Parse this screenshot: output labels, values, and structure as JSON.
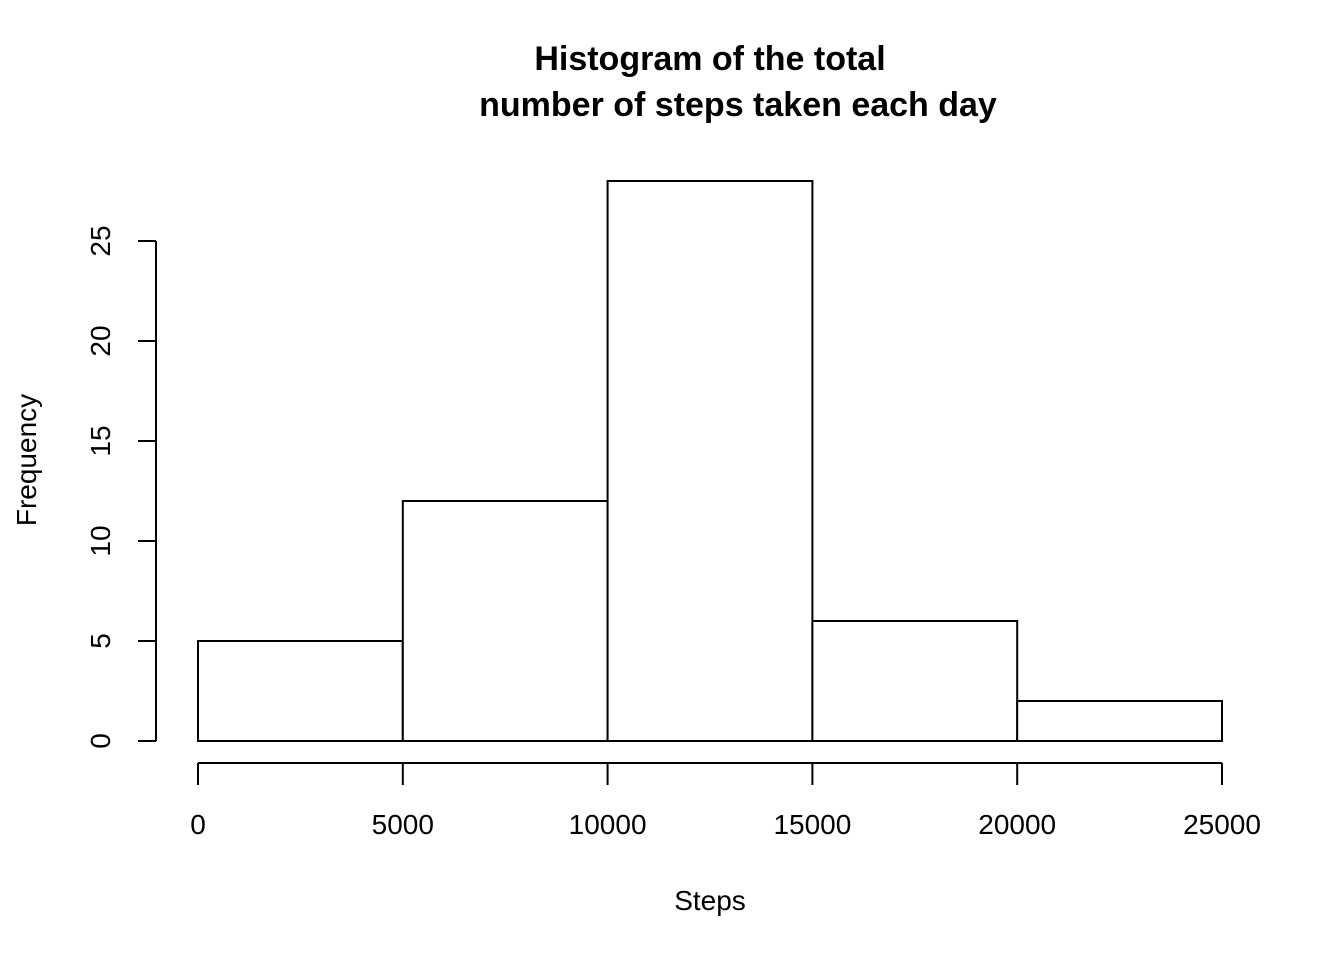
{
  "chart_data": {
    "type": "bar",
    "title_lines": [
      "Histogram of the total",
      "number of steps taken each day"
    ],
    "xlabel": "Steps",
    "ylabel": "Frequency",
    "bins": [
      {
        "from": 0,
        "to": 5000,
        "count": 5
      },
      {
        "from": 5000,
        "to": 10000,
        "count": 12
      },
      {
        "from": 10000,
        "to": 15000,
        "count": 28
      },
      {
        "from": 15000,
        "to": 20000,
        "count": 6
      },
      {
        "from": 20000,
        "to": 25000,
        "count": 2
      }
    ],
    "x_ticks": [
      0,
      5000,
      10000,
      15000,
      20000,
      25000
    ],
    "y_ticks": [
      0,
      5,
      10,
      15,
      20,
      25
    ],
    "xlim": [
      0,
      25000
    ],
    "ylim": [
      0,
      28
    ],
    "grid": false,
    "bar_fill": "#ffffff",
    "bar_stroke": "#000000"
  }
}
